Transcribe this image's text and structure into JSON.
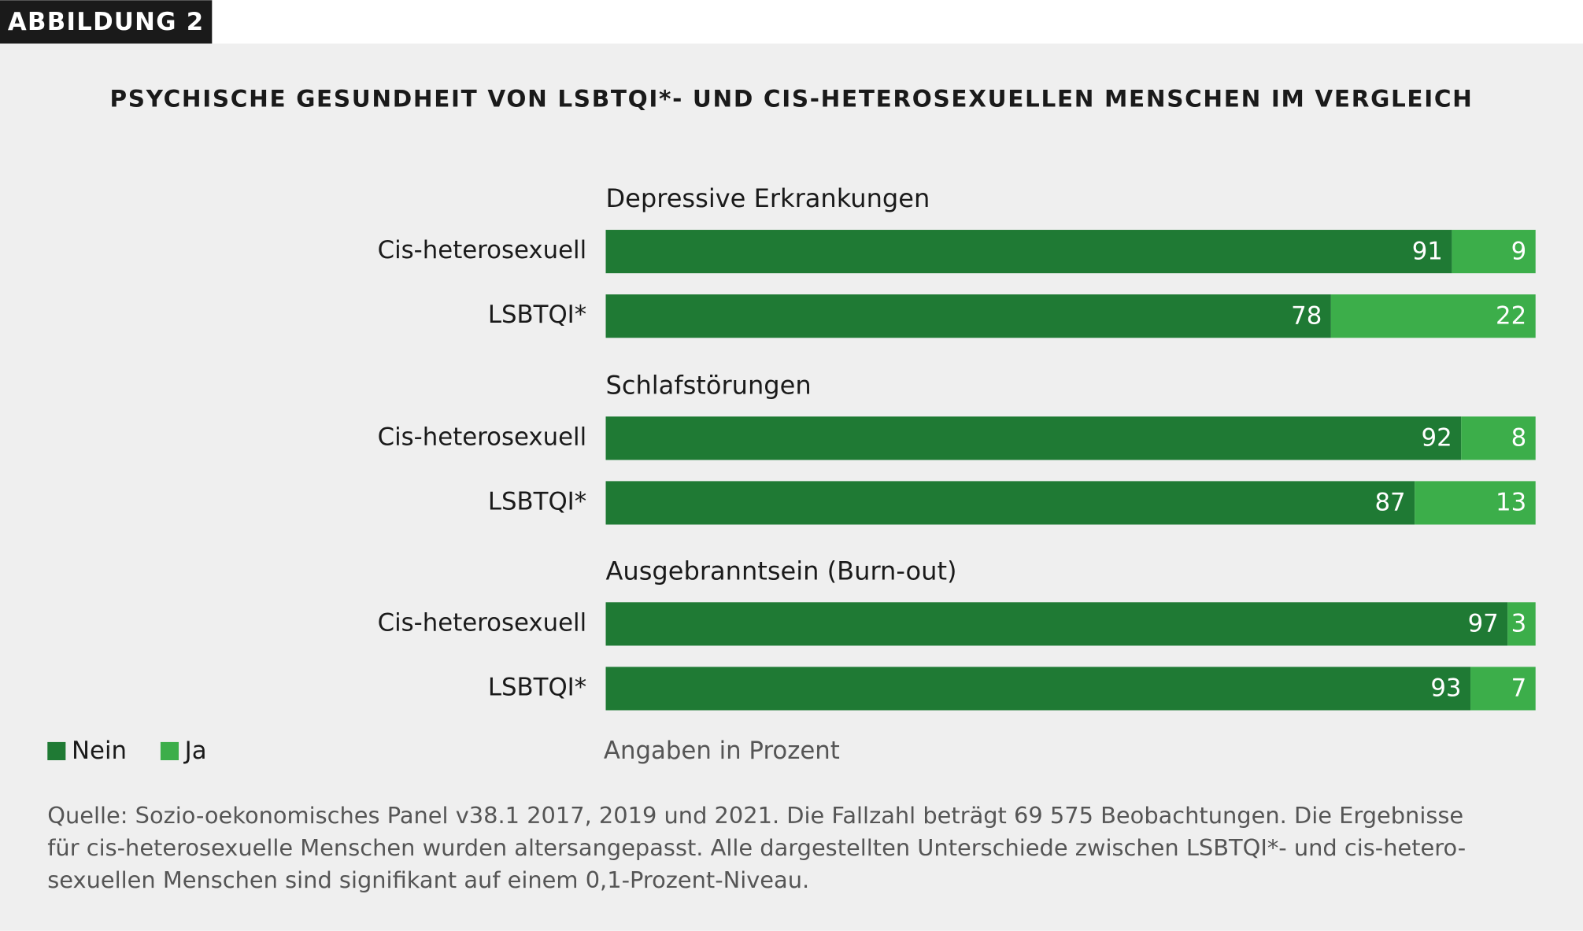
{
  "chart_data": {
    "type": "stacked-bar",
    "badge": "ABBILDUNG 2",
    "title": "PSYCHISCHE GESUNDHEIT VON LSBTQI*- UND CIS-HETEROSEXUELLEN MENSCHEN IM VERGLEICH",
    "groups": [
      "Depressive Erkrankungen",
      "Schlafstörungen",
      "Ausgebranntsein (Burn-out)"
    ],
    "categories": [
      "Cis-heterosexuell",
      "LSBTQI*",
      "Cis-heterosexuell",
      "LSBTQI*",
      "Cis-heterosexuell",
      "LSBTQI*"
    ],
    "series": [
      {
        "name": "Nein",
        "color": "#1f7a34",
        "values": [
          91,
          78,
          92,
          87,
          97,
          93
        ]
      },
      {
        "name": "Ja",
        "color": "#3cae4a",
        "values": [
          9,
          22,
          8,
          13,
          3,
          7
        ]
      }
    ],
    "xlim": [
      0,
      100
    ],
    "note": "Angaben in Prozent",
    "source": [
      "Quelle: Sozio-oekonomisches Panel v38.1 2017, 2019 und 2021. Die Fallzahl beträgt 69 575 Beobachtungen. Die Ergebnisse",
      "für cis-heterosexuelle Menschen wurden altersangepasst. Alle dargestellten Unterschiede zwischen LSBTQI*- und cis-hetero-",
      "sexuellen Menschen sind signifikant auf einem 0,1-Prozent-Niveau."
    ]
  }
}
